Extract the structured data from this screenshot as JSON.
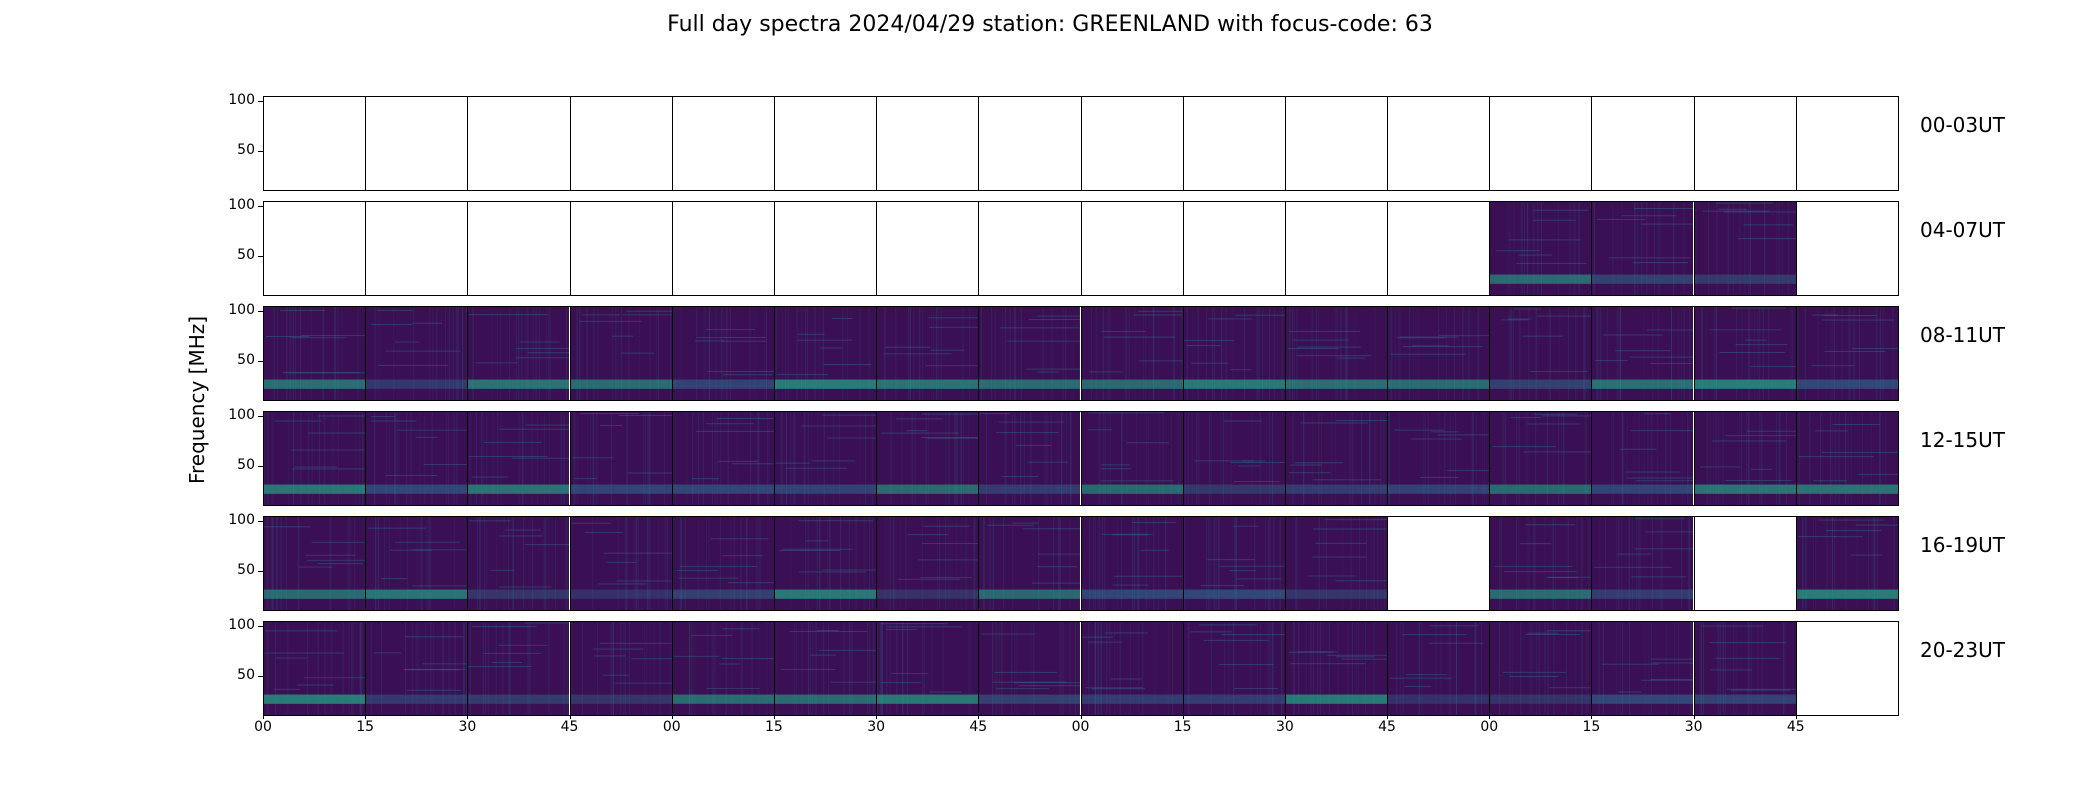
{
  "figure": {
    "title": "Full day spectra 2024/04/29 station: GREENLAND with focus-code: 63",
    "ylabel": "Frequency [MHz]"
  },
  "chart_data": {
    "type": "heatmap",
    "title": "Full day spectra 2024/04/29 station: GREENLAND with focus-code: 63",
    "ylabel": "Frequency [MHz]",
    "ylim": [
      10,
      105
    ],
    "yticks": [
      50,
      100
    ],
    "xticks": [
      "00",
      "15",
      "30",
      "45",
      "00",
      "15",
      "30",
      "45",
      "00",
      "15",
      "30",
      "45",
      "00",
      "15",
      "30",
      "45"
    ],
    "colormap": "viridis",
    "colors": {
      "low": "#3b0f53",
      "mid": "#2e6f8e",
      "high": "#21a585",
      "peak": "#e8e41a"
    },
    "rows": [
      {
        "label": "00-03UT",
        "panels": [
          0,
          0,
          0,
          0,
          0,
          0,
          0,
          0,
          0,
          0,
          0,
          0,
          0,
          0,
          0,
          0
        ]
      },
      {
        "label": "04-07UT",
        "panels": [
          0,
          0,
          0,
          0,
          0,
          0,
          0,
          0,
          0,
          0,
          0,
          0,
          1,
          1,
          1,
          0
        ]
      },
      {
        "label": "08-11UT",
        "panels": [
          1,
          1,
          1,
          1,
          1,
          1,
          1,
          1,
          1,
          1,
          1,
          1,
          1,
          1,
          1,
          1
        ]
      },
      {
        "label": "12-15UT",
        "panels": [
          1,
          1,
          1,
          1,
          1,
          1,
          1,
          1,
          1,
          1,
          1,
          1,
          1,
          1,
          1,
          1
        ]
      },
      {
        "label": "16-19UT",
        "panels": [
          1,
          1,
          1,
          1,
          1,
          1,
          1,
          1,
          1,
          1,
          1,
          0,
          1,
          1,
          0,
          1
        ]
      },
      {
        "label": "20-23UT",
        "panels": [
          1,
          1,
          1,
          1,
          1,
          1,
          1,
          1,
          1,
          1,
          1,
          1,
          1,
          1,
          1,
          0
        ]
      }
    ]
  }
}
